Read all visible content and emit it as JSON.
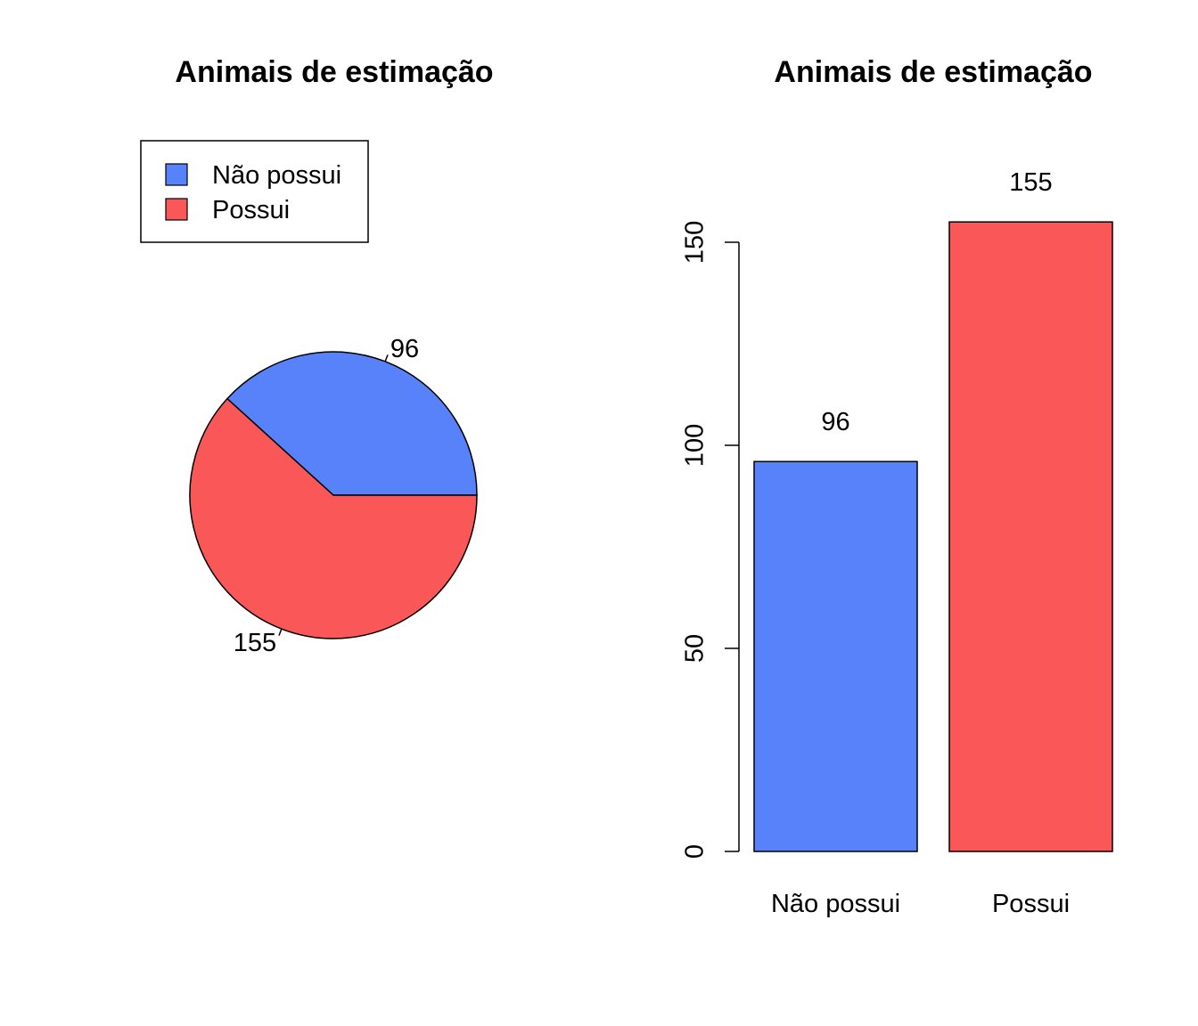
{
  "chart_data": [
    {
      "type": "pie",
      "title": "Animais de estimação",
      "categories": [
        "Não possui",
        "Possui"
      ],
      "values": [
        96,
        155
      ],
      "slice_labels": [
        "96",
        "155"
      ],
      "colors": [
        "#5882FA",
        "#FA5858"
      ],
      "legend": {
        "placement": "top-left",
        "entries": [
          "Não possui",
          "Possui"
        ]
      }
    },
    {
      "type": "bar",
      "title": "Animais de estimação",
      "categories": [
        "Não possui",
        "Possui"
      ],
      "values": [
        96,
        155
      ],
      "data_labels": [
        "96",
        "155"
      ],
      "colors": [
        "#5882FA",
        "#FA5858"
      ],
      "ylim": [
        0,
        150
      ],
      "yticks": [
        "0",
        "50",
        "100",
        "150"
      ],
      "xlabel": "",
      "ylabel": "",
      "grid": false
    }
  ]
}
